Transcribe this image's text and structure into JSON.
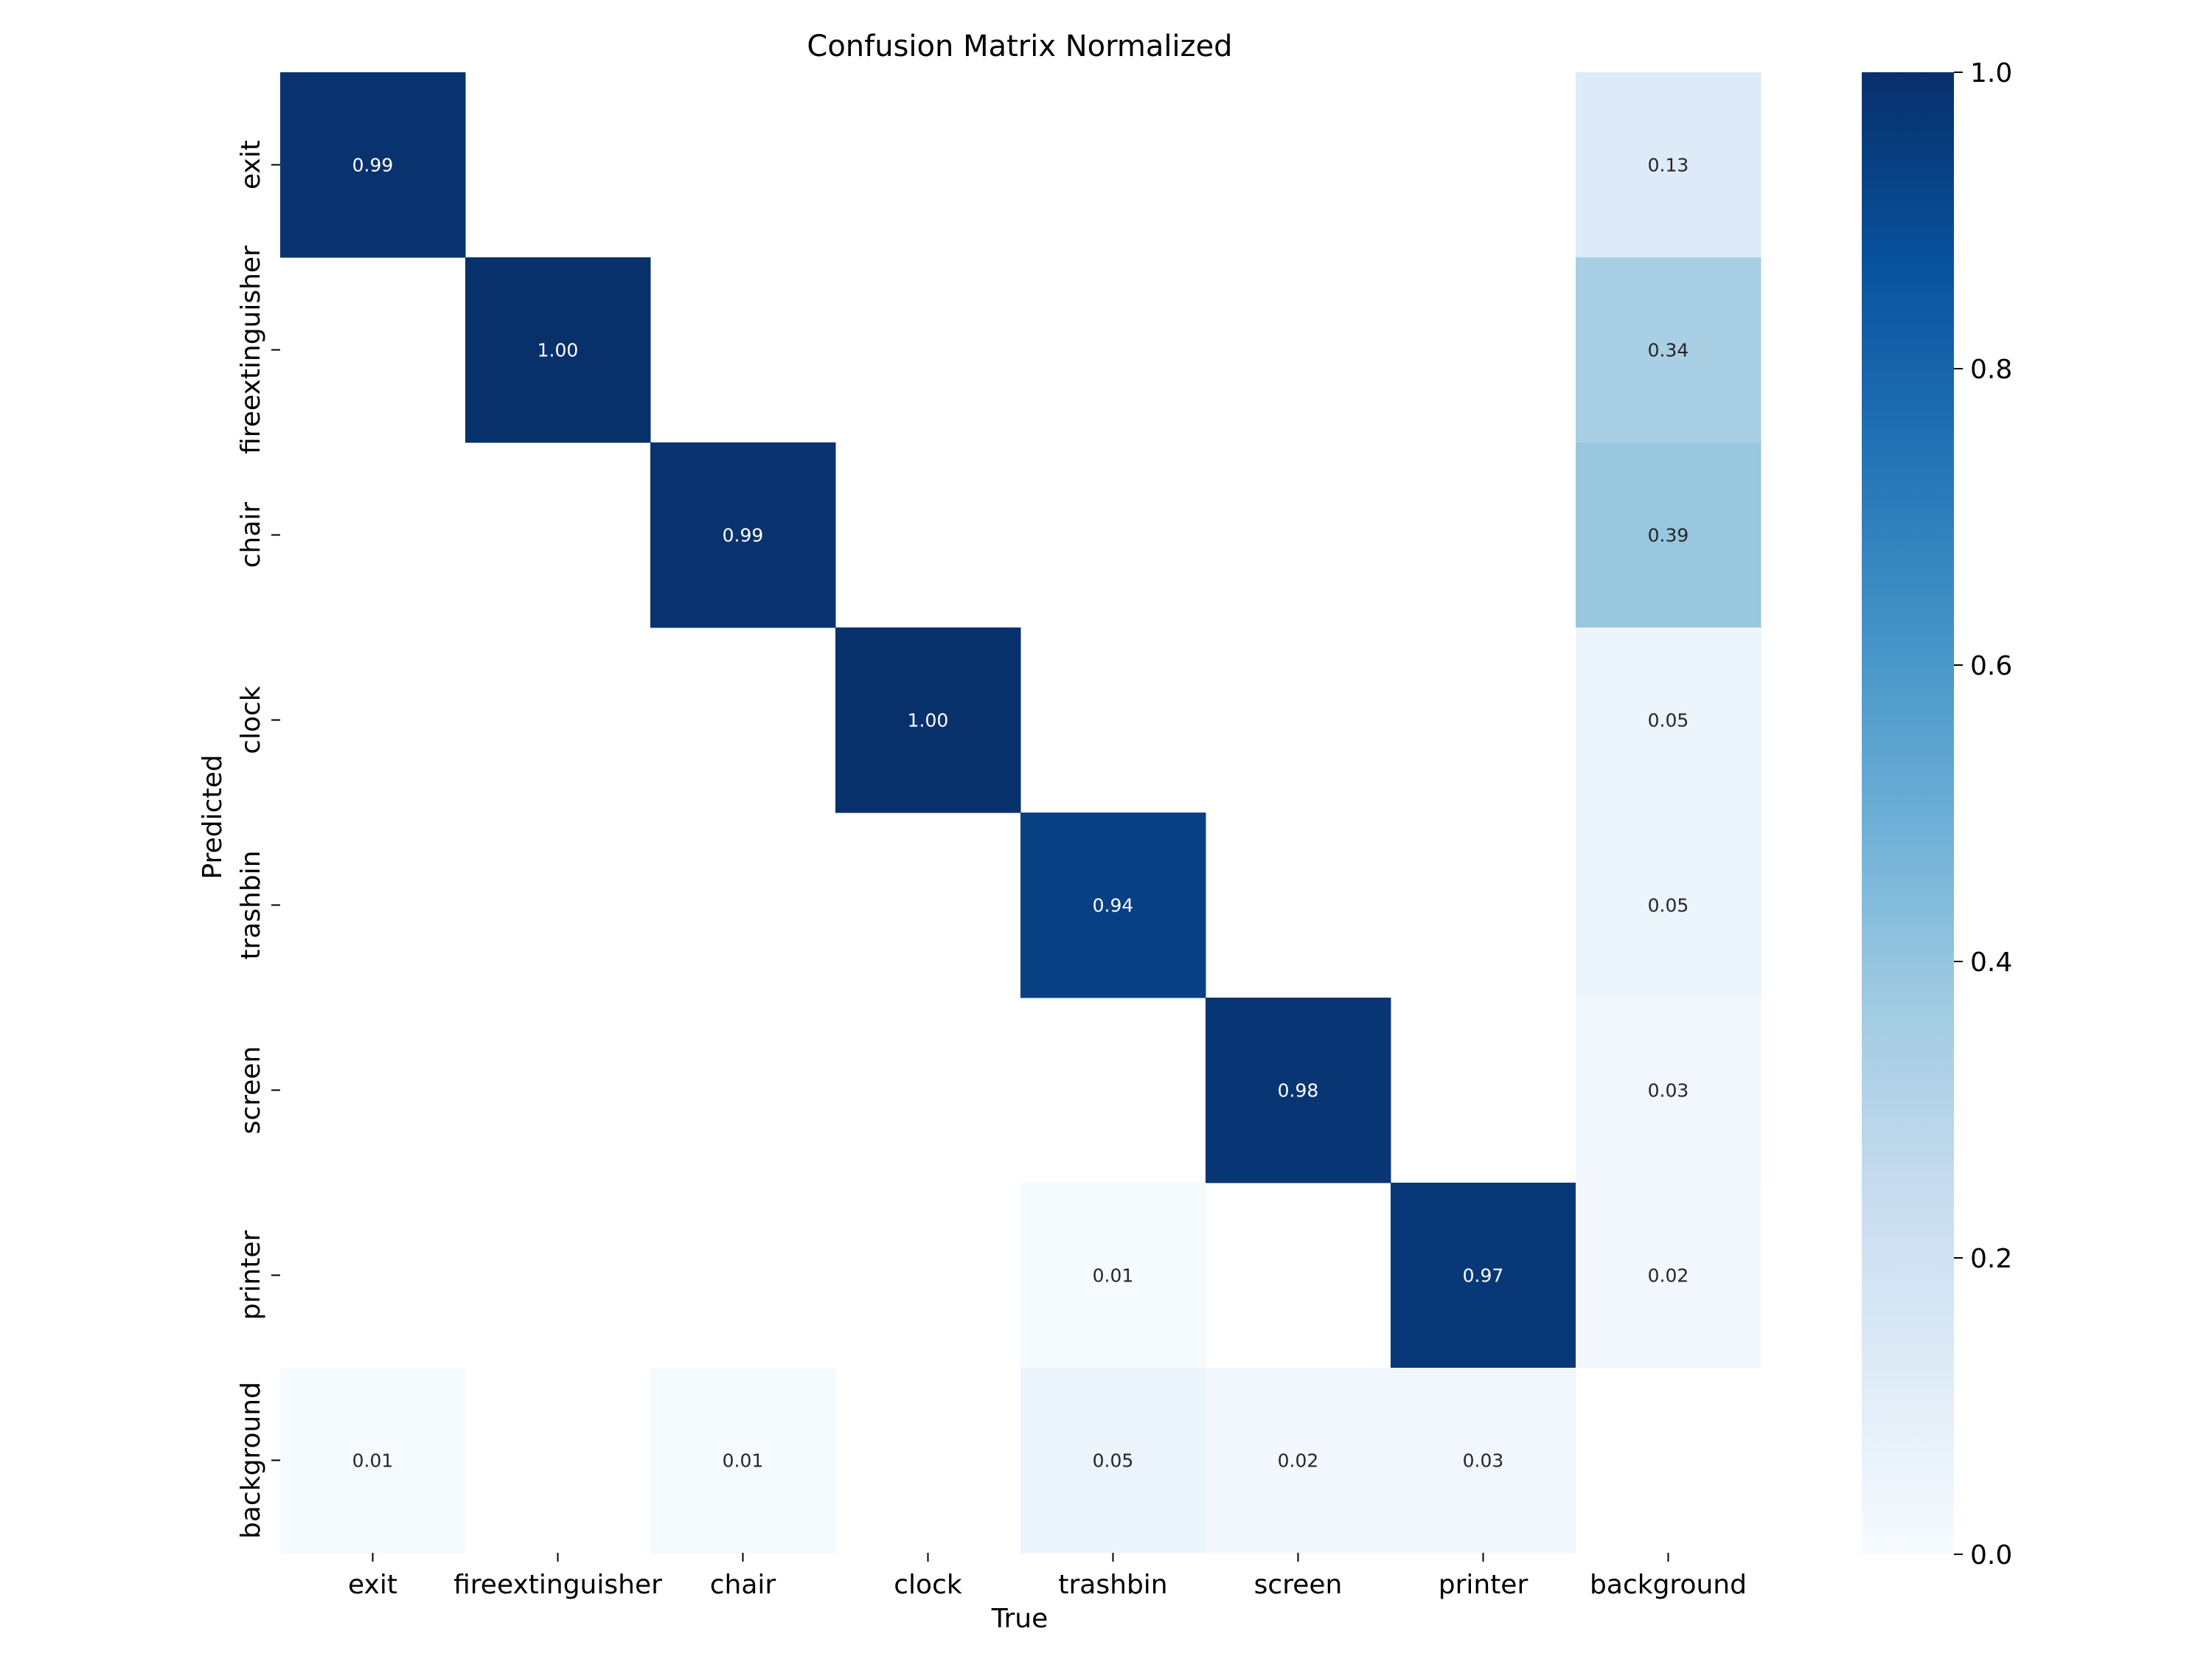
{
  "chart_data": {
    "type": "heatmap",
    "title": "Confusion Matrix Normalized",
    "xlabel": "True",
    "ylabel": "Predicted",
    "x_categories": [
      "exit",
      "fireextinguisher",
      "chair",
      "clock",
      "trashbin",
      "screen",
      "printer",
      "background"
    ],
    "y_categories": [
      "exit",
      "fireextinguisher",
      "chair",
      "clock",
      "trashbin",
      "screen",
      "printer",
      "background"
    ],
    "values": [
      [
        0.99,
        null,
        null,
        null,
        null,
        null,
        null,
        0.13
      ],
      [
        null,
        1.0,
        null,
        null,
        null,
        null,
        null,
        0.34
      ],
      [
        null,
        null,
        0.99,
        null,
        null,
        null,
        null,
        0.39
      ],
      [
        null,
        null,
        null,
        1.0,
        null,
        null,
        null,
        0.05
      ],
      [
        null,
        null,
        null,
        null,
        0.94,
        null,
        null,
        0.05
      ],
      [
        null,
        null,
        null,
        null,
        null,
        0.98,
        null,
        0.03
      ],
      [
        null,
        null,
        null,
        null,
        0.01,
        null,
        0.97,
        0.02
      ],
      [
        0.01,
        null,
        0.01,
        null,
        0.05,
        0.02,
        0.03,
        null
      ]
    ],
    "colorbar": {
      "colormap": "Blues",
      "range": [
        0.0,
        1.0
      ],
      "ticks": [
        "0.0",
        "0.2",
        "0.4",
        "0.6",
        "0.8",
        "1.0"
      ]
    },
    "grid": false,
    "legend": "none"
  }
}
